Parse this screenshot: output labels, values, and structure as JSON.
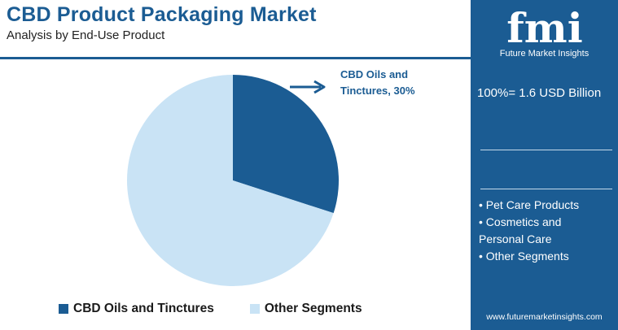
{
  "header": {
    "title": "CBD Product Packaging Market",
    "subtitle": "Analysis by End-Use Product"
  },
  "colors": {
    "brand": "#1b5c93",
    "series_dark": "#1b5c93",
    "series_light": "#c9e3f5"
  },
  "callout": {
    "line1": "CBD Oils and",
    "line2": "Tinctures, 30%"
  },
  "legend": {
    "item1": "CBD Oils and Tinctures",
    "item2": "Other Segments"
  },
  "panel": {
    "logo_text": "fmi",
    "logo_tagline": "Future Market Insights",
    "total_text": "100%= 1.6 USD Billion",
    "other_segments": [
      "• Pet Care Products",
      "• Cosmetics and",
      "Personal Care",
      "• Other Segments"
    ],
    "website": "www.futuremarketinsights.com"
  },
  "chart_data": {
    "type": "pie",
    "title": "CBD Product Packaging Market",
    "subtitle": "Analysis by End-Use Product",
    "categories": [
      "CBD Oils and Tinctures",
      "Other Segments"
    ],
    "values": [
      30,
      70
    ],
    "unit": "%",
    "total": "100%= 1.6 USD Billion",
    "legend_position": "bottom"
  }
}
